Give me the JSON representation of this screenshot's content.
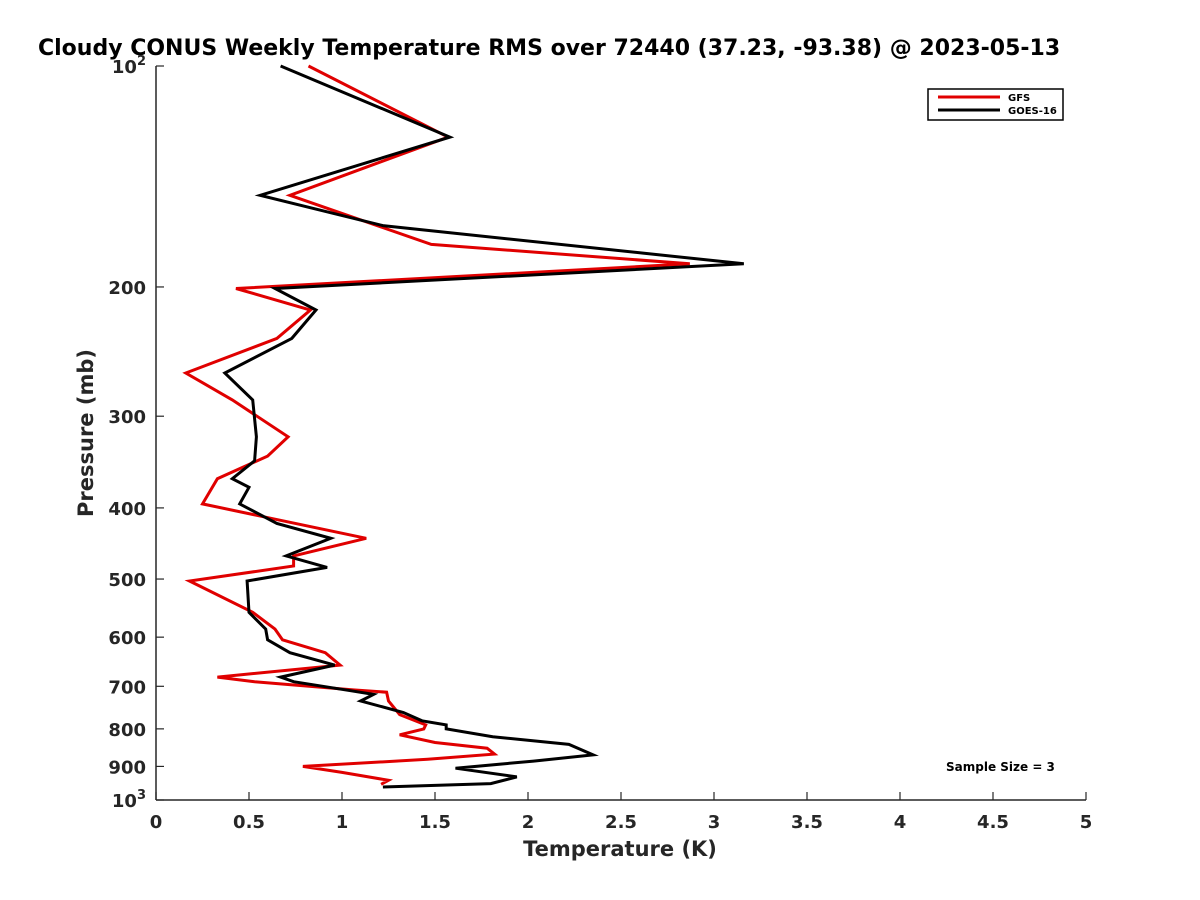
{
  "chart_data": {
    "type": "line",
    "title": "Cloudy CONUS Weekly Temperature RMS over 72440 (37.23, -93.38) @ 2023-05-13",
    "xlabel": "Temperature (K)",
    "ylabel": "Pressure (mb)",
    "xlim": [
      0,
      5
    ],
    "ylim": [
      100,
      1000
    ],
    "y_scale": "log",
    "y_reversed": true,
    "grid": false,
    "legend_position": "top-right",
    "x_ticks": [
      "0",
      "0.5",
      "1",
      "1.5",
      "2",
      "2.5",
      "3",
      "3.5",
      "4",
      "4.5",
      "5"
    ],
    "y_ticks": [
      {
        "value": 100,
        "base": "10",
        "exp": "2"
      },
      {
        "value": 200,
        "label": "200"
      },
      {
        "value": 300,
        "label": "300"
      },
      {
        "value": 400,
        "label": "400"
      },
      {
        "value": 500,
        "label": "500"
      },
      {
        "value": 600,
        "label": "600"
      },
      {
        "value": 700,
        "label": "700"
      },
      {
        "value": 800,
        "label": "800"
      },
      {
        "value": 900,
        "label": "900"
      },
      {
        "value": 1000,
        "base": "10",
        "exp": "3"
      }
    ],
    "annotation": "Sample Size = 3",
    "series": [
      {
        "name": "GFS",
        "color": "#e00000",
        "points": [
          [
            0.82,
            100
          ],
          [
            1.57,
            125
          ],
          [
            0.72,
            150
          ],
          [
            1.48,
            175
          ],
          [
            2.87,
            186
          ],
          [
            0.43,
            201
          ],
          [
            0.83,
            215
          ],
          [
            0.65,
            235
          ],
          [
            0.16,
            262
          ],
          [
            0.41,
            285
          ],
          [
            0.71,
            320
          ],
          [
            0.6,
            340
          ],
          [
            0.33,
            365
          ],
          [
            0.25,
            395
          ],
          [
            1.13,
            440
          ],
          [
            0.74,
            465
          ],
          [
            0.74,
            480
          ],
          [
            0.18,
            503
          ],
          [
            0.52,
            555
          ],
          [
            0.64,
            585
          ],
          [
            0.68,
            605
          ],
          [
            0.91,
            630
          ],
          [
            0.99,
            655
          ],
          [
            0.33,
            680
          ],
          [
            0.53,
            690
          ],
          [
            1.06,
            708
          ],
          [
            1.24,
            713
          ],
          [
            1.25,
            733
          ],
          [
            1.31,
            765
          ],
          [
            1.45,
            790
          ],
          [
            1.44,
            800
          ],
          [
            1.31,
            815
          ],
          [
            1.5,
            835
          ],
          [
            1.78,
            850
          ],
          [
            1.82,
            866
          ],
          [
            1.46,
            880
          ],
          [
            0.79,
            900
          ],
          [
            1.0,
            917
          ],
          [
            1.25,
            940
          ],
          [
            1.21,
            952
          ]
        ]
      },
      {
        "name": "GOES-16",
        "color": "#000000",
        "points": [
          [
            0.67,
            100
          ],
          [
            1.58,
            125
          ],
          [
            0.56,
            150
          ],
          [
            1.22,
            165
          ],
          [
            3.16,
            186
          ],
          [
            0.64,
            201
          ],
          [
            0.86,
            215
          ],
          [
            0.73,
            235
          ],
          [
            0.37,
            262
          ],
          [
            0.52,
            285
          ],
          [
            0.54,
            320
          ],
          [
            0.53,
            345
          ],
          [
            0.41,
            365
          ],
          [
            0.5,
            375
          ],
          [
            0.45,
            395
          ],
          [
            0.65,
            420
          ],
          [
            0.94,
            440
          ],
          [
            0.7,
            465
          ],
          [
            0.92,
            482
          ],
          [
            0.49,
            503
          ],
          [
            0.5,
            555
          ],
          [
            0.59,
            585
          ],
          [
            0.6,
            605
          ],
          [
            0.72,
            630
          ],
          [
            0.96,
            655
          ],
          [
            0.67,
            680
          ],
          [
            0.74,
            690
          ],
          [
            1.05,
            710
          ],
          [
            1.17,
            718
          ],
          [
            1.1,
            733
          ],
          [
            1.33,
            760
          ],
          [
            1.43,
            780
          ],
          [
            1.56,
            790
          ],
          [
            1.56,
            800
          ],
          [
            1.81,
            820
          ],
          [
            2.22,
            840
          ],
          [
            2.35,
            868
          ],
          [
            2.03,
            885
          ],
          [
            1.61,
            905
          ],
          [
            1.94,
            930
          ],
          [
            1.8,
            950
          ],
          [
            1.22,
            960
          ]
        ]
      }
    ]
  }
}
